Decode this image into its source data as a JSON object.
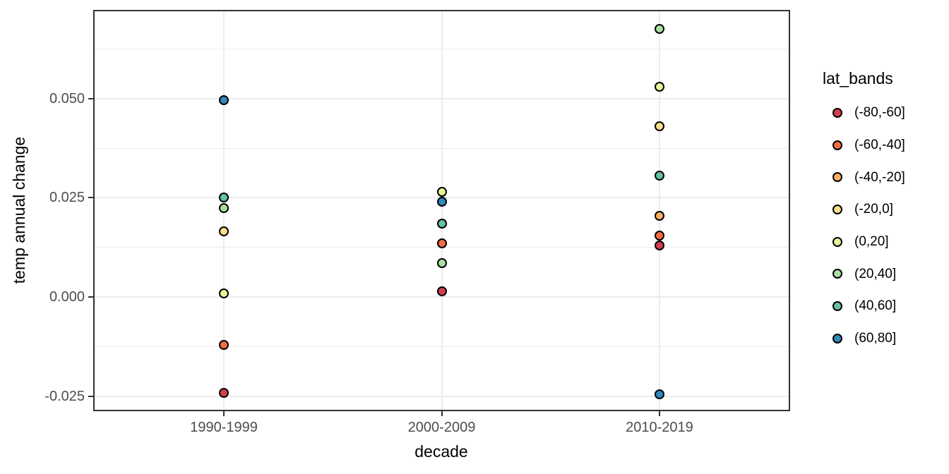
{
  "chart_data": {
    "type": "scatter",
    "title": "",
    "xlabel": "decade",
    "ylabel": "temp annual change",
    "x_categories": [
      "1990-1999",
      "2000-2009",
      "2010-2019"
    ],
    "y_axis": {
      "ylim": [
        -0.0287,
        0.0723
      ],
      "major_ticks": [
        {
          "value": -0.025,
          "label": "-0.025"
        },
        {
          "value": 0.0,
          "label": "0.000"
        },
        {
          "value": 0.025,
          "label": "0.025"
        },
        {
          "value": 0.05,
          "label": "0.050"
        }
      ],
      "minor_ticks": [
        -0.0125,
        0.0125,
        0.0375,
        0.0625
      ]
    },
    "grid": {
      "show": true,
      "major_color": "#EBEBEB",
      "minor_color": "#EBEBEB"
    },
    "legend": {
      "title": "lat_bands",
      "position": "right"
    },
    "style": {
      "panel_bg": "#FFFFFF",
      "panel_border_color": "#333333",
      "axis_text_color": "#4D4D4D",
      "title_color": "#000000",
      "point_stroke": "#000000"
    },
    "series": [
      {
        "name": "(-80,-60]",
        "color": "#D53E4F",
        "points": [
          {
            "x": "1990-1999",
            "y": -0.024
          },
          {
            "x": "2000-2009",
            "y": 0.0015
          },
          {
            "x": "2010-2019",
            "y": 0.013
          }
        ]
      },
      {
        "name": "(-60,-40]",
        "color": "#F46D43",
        "points": [
          {
            "x": "1990-1999",
            "y": -0.012
          },
          {
            "x": "2000-2009",
            "y": 0.0135
          },
          {
            "x": "2010-2019",
            "y": 0.0155
          }
        ]
      },
      {
        "name": "(-40,-20]",
        "color": "#FDAE61",
        "points": [
          {
            "x": "2010-2019",
            "y": 0.0205
          }
        ]
      },
      {
        "name": "(-20,0]",
        "color": "#FEE08B",
        "points": [
          {
            "x": "1990-1999",
            "y": 0.0165
          },
          {
            "x": "2010-2019",
            "y": 0.043
          }
        ]
      },
      {
        "name": "(0,20]",
        "color": "#E6F598",
        "points": [
          {
            "x": "1990-1999",
            "y": 0.001
          },
          {
            "x": "2000-2009",
            "y": 0.0265
          },
          {
            "x": "2010-2019",
            "y": 0.053
          }
        ]
      },
      {
        "name": "(20,40]",
        "color": "#ABDDA4",
        "points": [
          {
            "x": "1990-1999",
            "y": 0.0225
          },
          {
            "x": "2000-2009",
            "y": 0.0085
          },
          {
            "x": "2010-2019",
            "y": 0.0675
          }
        ]
      },
      {
        "name": "(40,60]",
        "color": "#66C2A5",
        "points": [
          {
            "x": "1990-1999",
            "y": 0.025
          },
          {
            "x": "2000-2009",
            "y": 0.0185
          },
          {
            "x": "2010-2019",
            "y": 0.0305
          }
        ]
      },
      {
        "name": "(60,80]",
        "color": "#3288BD",
        "points": [
          {
            "x": "1990-1999",
            "y": 0.0495
          },
          {
            "x": "2000-2009",
            "y": 0.024
          },
          {
            "x": "2010-2019",
            "y": -0.0245
          }
        ]
      }
    ]
  }
}
